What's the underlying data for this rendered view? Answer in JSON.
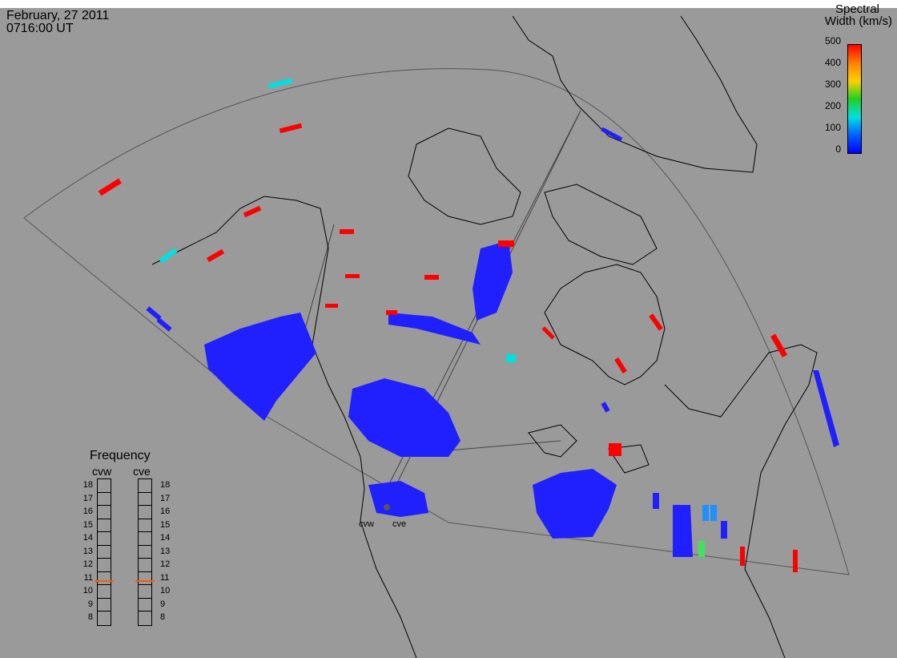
{
  "header": {
    "date": "February, 27 2011",
    "time": "0716:00 UT"
  },
  "colorbar": {
    "title_line1": "Spectral",
    "title_line2": "Width (km/s)",
    "ticks": [
      "500",
      "400",
      "300",
      "200",
      "100",
      "0"
    ],
    "gradient": [
      "#ff0000",
      "#ff8000",
      "#ffd000",
      "#20d020",
      "#00e0e0",
      "#0060ff",
      "#0000ff"
    ]
  },
  "frequency": {
    "title": "Frequency",
    "radars": [
      "cvw",
      "cve"
    ],
    "ticks": [
      "18",
      "17",
      "16",
      "15",
      "14",
      "13",
      "12",
      "11",
      "10",
      "9",
      "8"
    ],
    "selected_mhz": {
      "cvw": 10.8,
      "cve": 10.8
    },
    "marker_color": "#ff5a00"
  },
  "radar_sites": [
    "cvw",
    "cve"
  ],
  "colors": {
    "background": "#9a9a9a",
    "coast": "#000000",
    "high_width": "#ff0000",
    "low_width": "#2020ff",
    "mid_width": "#20d0e0"
  }
}
